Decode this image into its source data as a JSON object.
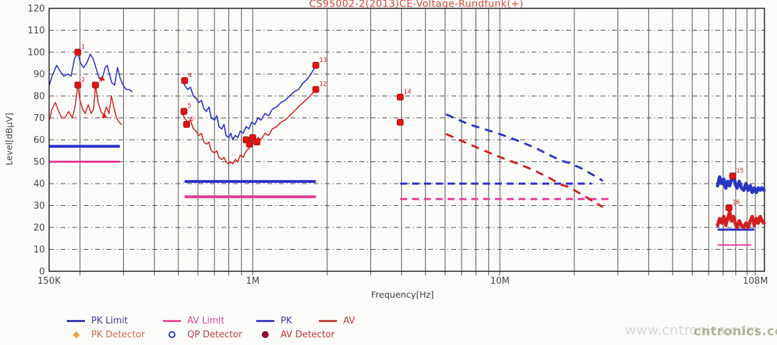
{
  "chart_data": {
    "type": "line",
    "title": "CS95002-2(2013)CE-Voltage-Rundfunk(+)",
    "xlabel": "Frequency[Hz]",
    "ylabel": "Level[dBµV]",
    "x_scale": "log",
    "xlim_mhz": [
      0.15,
      113
    ],
    "ylim": [
      0,
      120
    ],
    "grid": true,
    "x_ticks": [
      {
        "f_mhz": 0.15,
        "label": "150K"
      },
      {
        "f_mhz": 1,
        "label": "1M"
      },
      {
        "f_mhz": 10,
        "label": "10M"
      },
      {
        "f_mhz": 108,
        "label": "108M"
      }
    ],
    "y_tick_step": 10,
    "y_tick_labels": [
      "0",
      "10",
      "20",
      "30",
      "40",
      "50",
      "60",
      "70",
      "80",
      "90",
      "100",
      "110",
      "120"
    ],
    "series": [
      {
        "name": "PK scan 150K-330K",
        "color": "blue",
        "width": 1.6,
        "dashed": false,
        "points_mhz_db": [
          [
            0.1505,
            85
          ],
          [
            0.154,
            89
          ],
          [
            0.161,
            94
          ],
          [
            0.167,
            91
          ],
          [
            0.172,
            89
          ],
          [
            0.178,
            90
          ],
          [
            0.184,
            89
          ],
          [
            0.19,
            97
          ],
          [
            0.196,
            100
          ],
          [
            0.201,
            95
          ],
          [
            0.207,
            93
          ],
          [
            0.213,
            95
          ],
          [
            0.22,
            99
          ],
          [
            0.226,
            97
          ],
          [
            0.232,
            93
          ],
          [
            0.239,
            88
          ],
          [
            0.246,
            88
          ],
          [
            0.253,
            93
          ],
          [
            0.258,
            94
          ],
          [
            0.263,
            90
          ],
          [
            0.269,
            86
          ],
          [
            0.276,
            85
          ],
          [
            0.284,
            93
          ],
          [
            0.291,
            88
          ],
          [
            0.299,
            85
          ],
          [
            0.307,
            83
          ],
          [
            0.316,
            83
          ],
          [
            0.325,
            82
          ]
        ]
      },
      {
        "name": "AV scan 150K-300K",
        "color": "red",
        "width": 1.5,
        "dashed": false,
        "points_mhz_db": [
          [
            0.1505,
            69
          ],
          [
            0.154,
            74
          ],
          [
            0.159,
            77
          ],
          [
            0.164,
            73
          ],
          [
            0.169,
            70
          ],
          [
            0.174,
            70
          ],
          [
            0.18,
            73
          ],
          [
            0.186,
            70
          ],
          [
            0.191,
            75
          ],
          [
            0.196,
            85
          ],
          [
            0.2,
            78
          ],
          [
            0.205,
            74
          ],
          [
            0.21,
            72
          ],
          [
            0.216,
            76
          ],
          [
            0.222,
            72
          ],
          [
            0.227,
            74
          ],
          [
            0.231,
            85
          ],
          [
            0.237,
            77
          ],
          [
            0.243,
            73
          ],
          [
            0.249,
            71
          ],
          [
            0.256,
            75
          ],
          [
            0.262,
            72
          ],
          [
            0.268,
            80
          ],
          [
            0.274,
            75
          ],
          [
            0.281,
            70
          ],
          [
            0.288,
            68
          ],
          [
            0.295,
            67
          ]
        ]
      },
      {
        "name": "PK scan 520K-1.8M",
        "color": "blue",
        "width": 1.7,
        "dashed": false,
        "points_mhz_db": [
          [
            0.52,
            88
          ],
          [
            0.53,
            85
          ],
          [
            0.545,
            83
          ],
          [
            0.56,
            84
          ],
          [
            0.575,
            80
          ],
          [
            0.59,
            79
          ],
          [
            0.605,
            77
          ],
          [
            0.62,
            78
          ],
          [
            0.635,
            74
          ],
          [
            0.65,
            73
          ],
          [
            0.665,
            75
          ],
          [
            0.68,
            70
          ],
          [
            0.7,
            69
          ],
          [
            0.715,
            71
          ],
          [
            0.73,
            66
          ],
          [
            0.75,
            65
          ],
          [
            0.765,
            67
          ],
          [
            0.78,
            62
          ],
          [
            0.8,
            61
          ],
          [
            0.815,
            63
          ],
          [
            0.83,
            60
          ],
          [
            0.85,
            62
          ],
          [
            0.87,
            61
          ],
          [
            0.89,
            64
          ],
          [
            0.915,
            63
          ],
          [
            0.94,
            66
          ],
          [
            0.965,
            65
          ],
          [
            0.99,
            68
          ],
          [
            1.02,
            67
          ],
          [
            1.05,
            70
          ],
          [
            1.08,
            69
          ],
          [
            1.12,
            72
          ],
          [
            1.16,
            71
          ],
          [
            1.2,
            74
          ],
          [
            1.25,
            75
          ],
          [
            1.3,
            77
          ],
          [
            1.35,
            78
          ],
          [
            1.41,
            80
          ],
          [
            1.47,
            82
          ],
          [
            1.53,
            83
          ],
          [
            1.6,
            86
          ],
          [
            1.67,
            88
          ],
          [
            1.74,
            91
          ],
          [
            1.8,
            94
          ]
        ]
      },
      {
        "name": "AV scan 520K-1.8M",
        "color": "red",
        "width": 1.6,
        "dashed": false,
        "points_mhz_db": [
          [
            0.52,
            72
          ],
          [
            0.53,
            70
          ],
          [
            0.545,
            68
          ],
          [
            0.56,
            69
          ],
          [
            0.575,
            65
          ],
          [
            0.59,
            64
          ],
          [
            0.605,
            62
          ],
          [
            0.62,
            63
          ],
          [
            0.635,
            59
          ],
          [
            0.65,
            58
          ],
          [
            0.665,
            59
          ],
          [
            0.68,
            55
          ],
          [
            0.7,
            54
          ],
          [
            0.715,
            55
          ],
          [
            0.73,
            52
          ],
          [
            0.75,
            51
          ],
          [
            0.765,
            52
          ],
          [
            0.78,
            50
          ],
          [
            0.8,
            49
          ],
          [
            0.815,
            50
          ],
          [
            0.83,
            49
          ],
          [
            0.85,
            51
          ],
          [
            0.87,
            50
          ],
          [
            0.89,
            53
          ],
          [
            0.915,
            52
          ],
          [
            0.94,
            55
          ],
          [
            0.965,
            56
          ],
          [
            0.99,
            58
          ],
          [
            1.02,
            59
          ],
          [
            1.05,
            61
          ],
          [
            1.08,
            60
          ],
          [
            1.12,
            63
          ],
          [
            1.16,
            62
          ],
          [
            1.2,
            65
          ],
          [
            1.25,
            66
          ],
          [
            1.3,
            68
          ],
          [
            1.35,
            69
          ],
          [
            1.41,
            71
          ],
          [
            1.47,
            73
          ],
          [
            1.53,
            75
          ],
          [
            1.6,
            77
          ],
          [
            1.67,
            79
          ],
          [
            1.74,
            81
          ],
          [
            1.8,
            83
          ]
        ]
      },
      {
        "name": "PK scan 6M-26M dashed",
        "color": "blue",
        "width": 3,
        "dashed": true,
        "points_mhz_db": [
          [
            6.1,
            71.5
          ],
          [
            7.5,
            67
          ],
          [
            9.8,
            63
          ],
          [
            11.9,
            59.5
          ],
          [
            13.8,
            56.5
          ],
          [
            15.9,
            53
          ],
          [
            17.7,
            50.5
          ],
          [
            19,
            49.5
          ],
          [
            21.8,
            46.5
          ],
          [
            25.9,
            41.5
          ]
        ]
      },
      {
        "name": "AV scan 6M-26M dashed",
        "color": "red",
        "width": 3,
        "dashed": true,
        "points_mhz_db": [
          [
            6.1,
            62.5
          ],
          [
            7.5,
            58
          ],
          [
            9.8,
            52.5
          ],
          [
            11.9,
            49
          ],
          [
            13.8,
            46
          ],
          [
            15.9,
            42.5
          ],
          [
            17.7,
            39.5
          ],
          [
            19,
            38.5
          ],
          [
            21.8,
            34.5
          ],
          [
            25.9,
            29.5
          ]
        ]
      },
      {
        "name": "PK scan 76M-117M",
        "color": "blue",
        "width": 5,
        "dashed": false,
        "points_mhz_db": [
          [
            76,
            39
          ],
          [
            77.5,
            43
          ],
          [
            79,
            40
          ],
          [
            80.5,
            42
          ],
          [
            82,
            38
          ],
          [
            83.5,
            41
          ],
          [
            85,
            39
          ],
          [
            86.5,
            42
          ],
          [
            88,
            44
          ],
          [
            89.5,
            40
          ],
          [
            91,
            38
          ],
          [
            93,
            41
          ],
          [
            95,
            38
          ],
          [
            97,
            37
          ],
          [
            99,
            40
          ],
          [
            101,
            37
          ],
          [
            103,
            39
          ],
          [
            105,
            36
          ],
          [
            107,
            38
          ],
          [
            109,
            36
          ],
          [
            111,
            38
          ],
          [
            113,
            37
          ],
          [
            115,
            38
          ],
          [
            117,
            37
          ]
        ]
      },
      {
        "name": "AV scan 76M-117M",
        "color": "red",
        "width": 5,
        "dashed": false,
        "points_mhz_db": [
          [
            76,
            21
          ],
          [
            77.5,
            24
          ],
          [
            79,
            22
          ],
          [
            80.5,
            25
          ],
          [
            82,
            21
          ],
          [
            83.5,
            24
          ],
          [
            85,
            27
          ],
          [
            86.5,
            23
          ],
          [
            88,
            25
          ],
          [
            89.5,
            22
          ],
          [
            91,
            20
          ],
          [
            93,
            23
          ],
          [
            95,
            21
          ],
          [
            97,
            20
          ],
          [
            99,
            22
          ],
          [
            101,
            20
          ],
          [
            103,
            23
          ],
          [
            105,
            25
          ],
          [
            107,
            21
          ],
          [
            109,
            24
          ],
          [
            111,
            22
          ],
          [
            113,
            25
          ],
          [
            115,
            23
          ],
          [
            117,
            22
          ]
        ]
      }
    ],
    "limits": [
      {
        "name": "PK Limit 150K-290K",
        "level_db": 57,
        "f1_mhz": 0.1505,
        "f2_mhz": 0.29,
        "color": "blue_limit",
        "width": 4,
        "dashed": false
      },
      {
        "name": "AV Limit 150K-290K",
        "level_db": 50,
        "f1_mhz": 0.1505,
        "f2_mhz": 0.29,
        "color": "pink",
        "width": 3,
        "dashed": false
      },
      {
        "name": "PK Limit 530K-1.8M",
        "level_db": 41,
        "f1_mhz": 0.53,
        "f2_mhz": 1.8,
        "color": "blue_limit",
        "width": 4,
        "dashed": false
      },
      {
        "name": "AV Limit 530K-1.8M",
        "level_db": 34,
        "f1_mhz": 0.53,
        "f2_mhz": 1.8,
        "color": "pink",
        "width": 4,
        "dashed": false
      },
      {
        "name": "PK Limit 4M-23M dashed",
        "level_db": 40,
        "f1_mhz": 3.95,
        "f2_mhz": 23.5,
        "color": "blue_limit",
        "width": 3,
        "dashed": true
      },
      {
        "name": "AV Limit 4M-27M dashed",
        "level_db": 33,
        "f1_mhz": 3.95,
        "f2_mhz": 27.5,
        "color": "pink",
        "width": 3,
        "dashed": true
      },
      {
        "name": "PK Limit 76M-107M",
        "level_db": 19,
        "f1_mhz": 76,
        "f2_mhz": 107,
        "color": "blue_limit",
        "width": 3,
        "dashed": false
      },
      {
        "name": "AV Limit 76M-104M",
        "level_db": 12,
        "f1_mhz": 76,
        "f2_mhz": 104,
        "color": "pink",
        "width": 2,
        "dashed": false
      }
    ],
    "markers": [
      {
        "f_mhz": 0.196,
        "level_db": 100,
        "label": "1",
        "shape": "square"
      },
      {
        "f_mhz": 0.196,
        "level_db": 85,
        "label": "2",
        "shape": "square"
      },
      {
        "f_mhz": 0.231,
        "level_db": 85,
        "label": "3",
        "shape": "square"
      },
      {
        "f_mhz": 0.246,
        "level_db": 88,
        "label": "",
        "shape": "triangle"
      },
      {
        "f_mhz": 0.251,
        "level_db": 71,
        "label": "",
        "shape": "triangle"
      },
      {
        "f_mhz": 0.53,
        "level_db": 87,
        "label": "4",
        "shape": "square"
      },
      {
        "f_mhz": 0.527,
        "level_db": 73,
        "label": "5",
        "shape": "square"
      },
      {
        "f_mhz": 0.54,
        "level_db": 67,
        "label": "6",
        "shape": "square"
      },
      {
        "f_mhz": 0.94,
        "level_db": 60,
        "label": "",
        "shape": "square"
      },
      {
        "f_mhz": 0.97,
        "level_db": 58,
        "label": "",
        "shape": "square"
      },
      {
        "f_mhz": 1.0,
        "level_db": 61,
        "label": "",
        "shape": "square"
      },
      {
        "f_mhz": 1.04,
        "level_db": 59,
        "label": "",
        "shape": "square"
      },
      {
        "f_mhz": 1.8,
        "level_db": 94,
        "label": "13",
        "shape": "square"
      },
      {
        "f_mhz": 1.8,
        "level_db": 83,
        "label": "12",
        "shape": "square"
      },
      {
        "f_mhz": 3.95,
        "level_db": 79.5,
        "label": "14",
        "shape": "square"
      },
      {
        "f_mhz": 3.95,
        "level_db": 68,
        "label": "",
        "shape": "square"
      },
      {
        "f_mhz": 87.5,
        "level_db": 43.5,
        "label": "15",
        "shape": "square"
      },
      {
        "f_mhz": 84.5,
        "level_db": 29,
        "label": "16",
        "shape": "square"
      }
    ]
  },
  "legend": {
    "row1": [
      {
        "label": "PK Limit",
        "type": "line",
        "color": "#3b3bb0",
        "text_color": "#3b3b9e"
      },
      {
        "label": "AV Limit",
        "type": "line",
        "color": "#e8509c",
        "text_color": "#d44a9e"
      },
      {
        "label": "PK",
        "type": "line",
        "color": "#4040c0",
        "text_color": "#3b3b9e"
      },
      {
        "label": "AV",
        "type": "line",
        "color": "#c24444",
        "text_color": "#bb3b3b"
      }
    ],
    "row2": [
      {
        "label": "PK Detector",
        "type": "diamond",
        "color": "#e6a23a",
        "text_color": "#cc6a4a"
      },
      {
        "label": "QP Detector",
        "type": "circle_open",
        "color": "#2b35c4",
        "text_color": "#b04048"
      },
      {
        "label": "AV Detector",
        "type": "circle_filled",
        "color": "#8e0f2e",
        "text_color": "#bb3333"
      }
    ]
  },
  "watermark": {
    "text": "www.cntronics.com",
    "overlay": "cntronics.com"
  },
  "colors": {
    "blue": "#2b35c4",
    "blue_limit": "#2b2bcb",
    "red": "#d22020",
    "pink": "#e23c96",
    "marker": "#e11414",
    "marker_edge": "#8f0f0f",
    "grid": "#4d4d4d",
    "frame": "#1c1c1c",
    "tick_text": "#474747",
    "title": "#d24b38",
    "watermark": "#d6d6d6",
    "watermark_overlay": "rgba(136,140,96,0.6)"
  }
}
